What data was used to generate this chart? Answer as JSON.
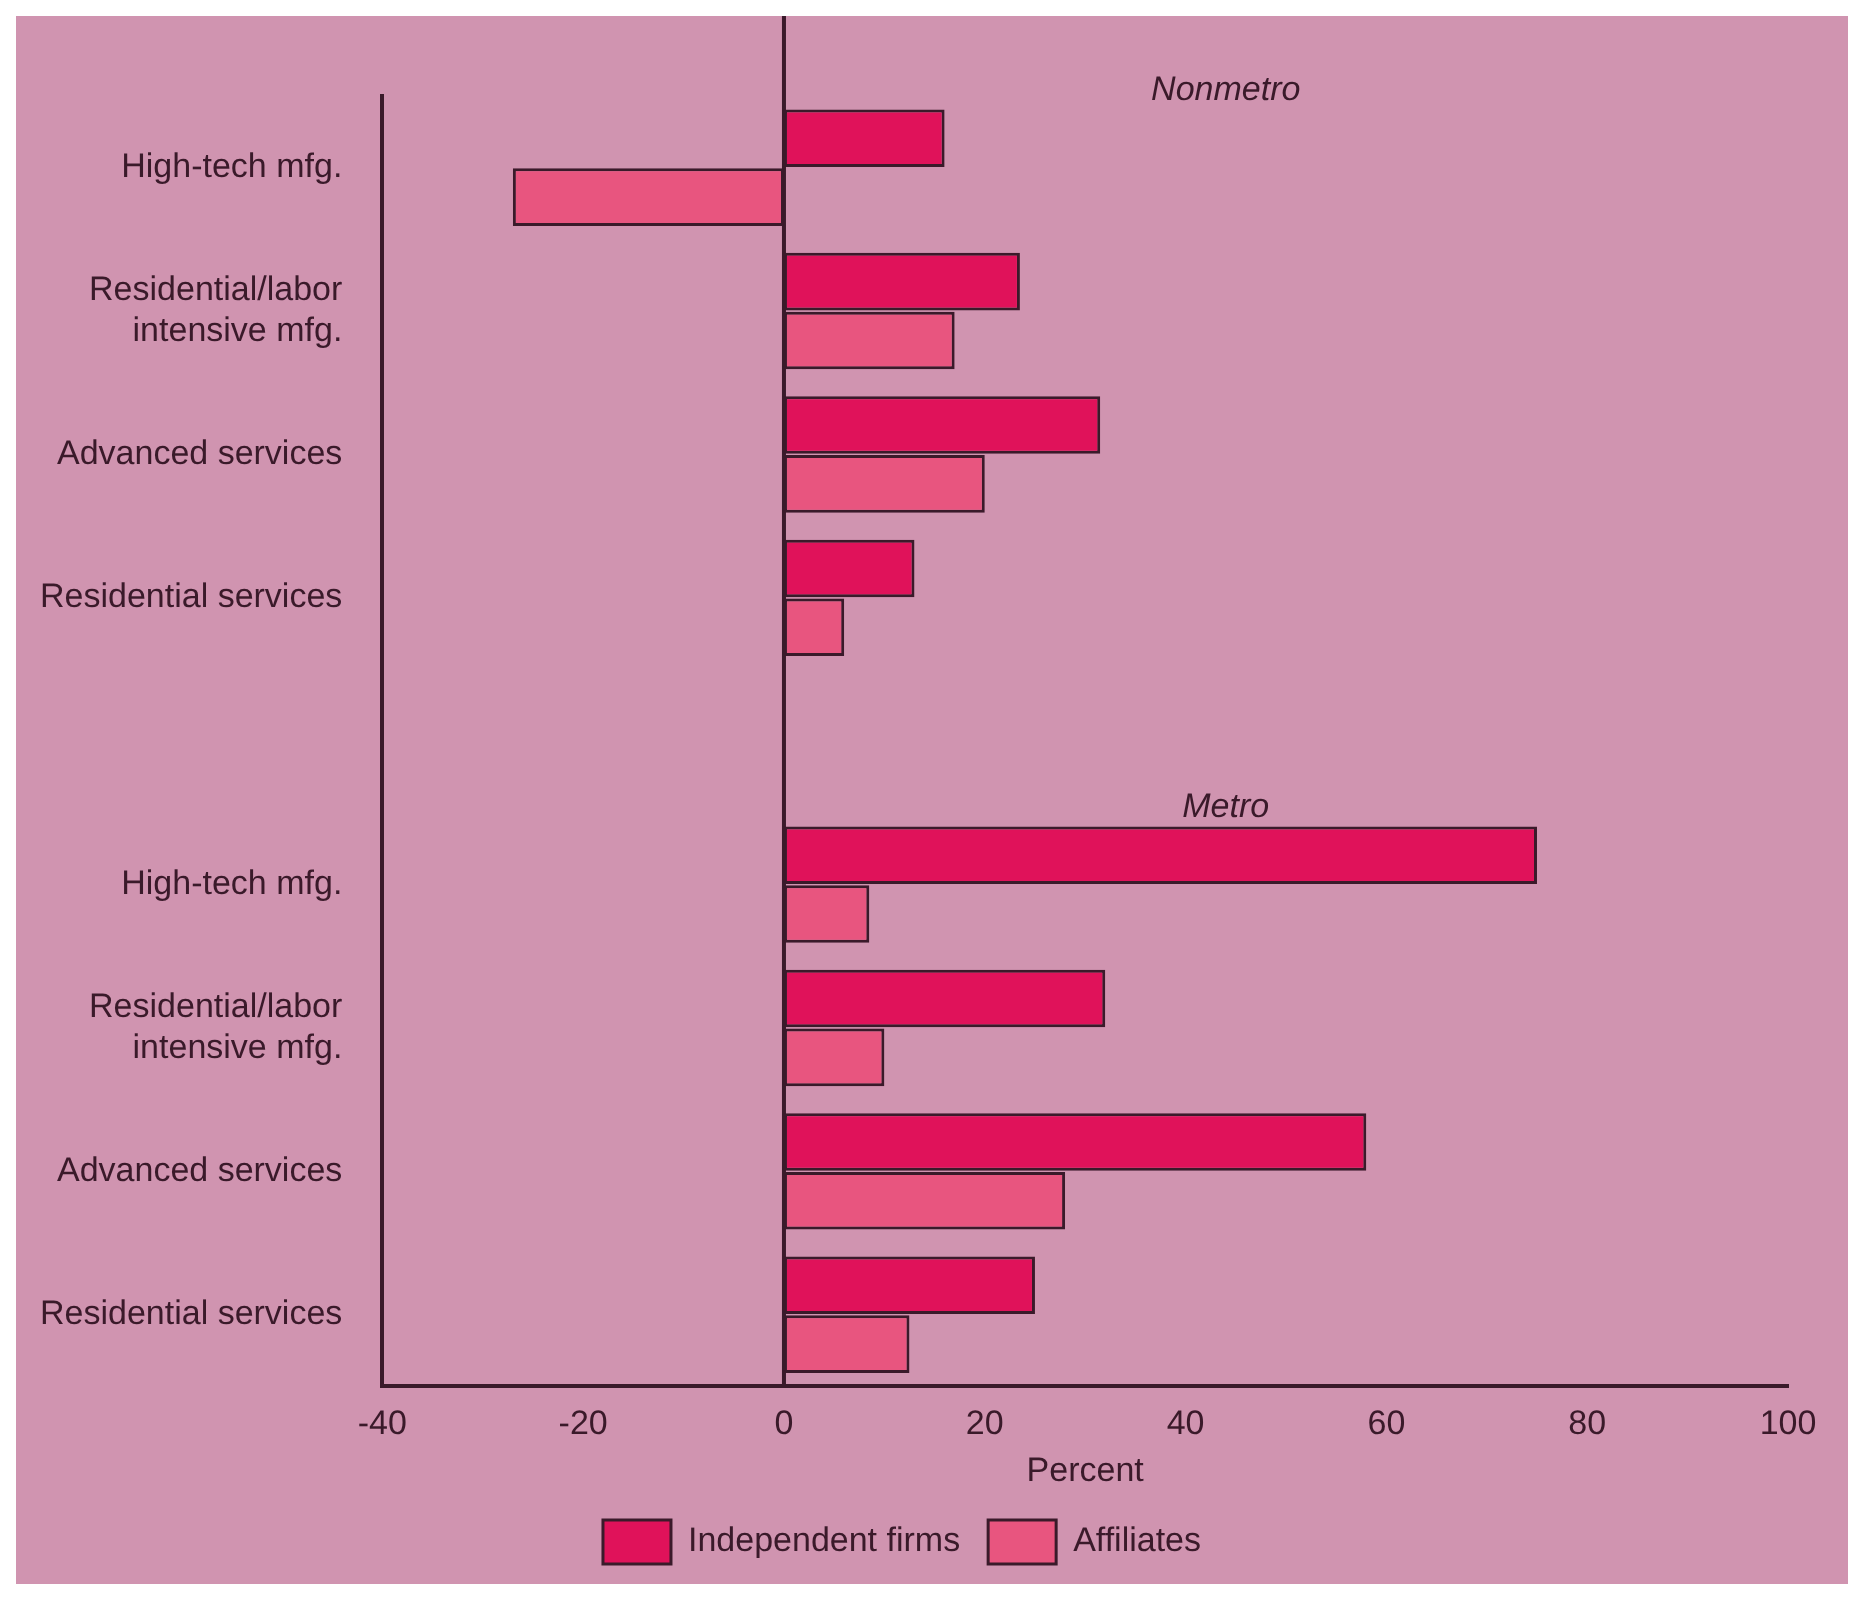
{
  "chart_data": {
    "type": "bar",
    "orientation": "horizontal",
    "xlabel": "Percent",
    "categories": [
      "High-tech mfg.",
      "Residential/labor intensive mfg.",
      "Advanced services",
      "Residential services",
      null,
      "High-tech mfg.",
      "Residential/labor intensive mfg.",
      "Advanced services",
      "Residential services"
    ],
    "series": [
      {
        "name": "Independent firms",
        "color": "#e0125a",
        "values": [
          16,
          23.5,
          31.5,
          13,
          null,
          75,
          32,
          58,
          25
        ]
      },
      {
        "name": "Affiliates",
        "color": "#e8557f",
        "values": [
          -27,
          17,
          20,
          6,
          null,
          8.5,
          10,
          28,
          12.5
        ]
      }
    ],
    "xlim": [
      -40,
      100
    ],
    "xticks": [
      -40,
      -20,
      0,
      20,
      40,
      60,
      80,
      100
    ],
    "ref_lines": [
      {
        "axis": "x",
        "value": 0
      }
    ],
    "annotations": [
      "Nonmetro",
      "Metro"
    ],
    "legend": "bottom"
  }
}
